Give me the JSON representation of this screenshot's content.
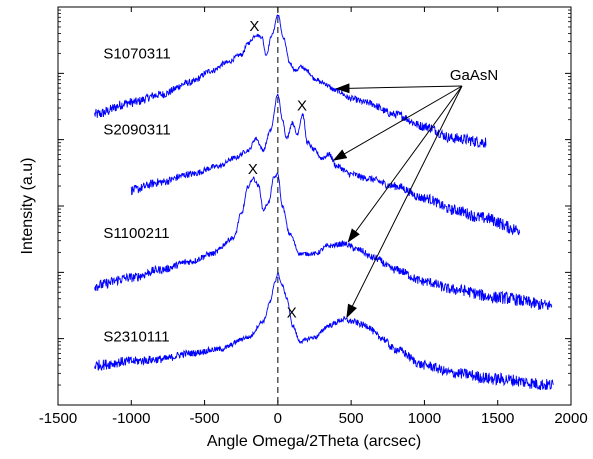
{
  "chart_data": {
    "type": "line",
    "xlabel": "Angle Omega/2Theta (arcsec)",
    "ylabel": "Intensity (a.u)",
    "xlim": [
      -1500,
      2000
    ],
    "ylim": [
      0,
      100
    ],
    "x_ticks": [
      -1500,
      -1000,
      -500,
      0,
      500,
      1000,
      1500,
      2000
    ],
    "y_tick_labels_shown": false,
    "line_color": "#0000ff",
    "reference_line": {
      "x": 0,
      "style": "dashed"
    },
    "series": [
      {
        "name": "S1070311",
        "x": [
          -1250,
          -1000,
          -800,
          -600,
          -450,
          -350,
          -250,
          -200,
          -150,
          -110,
          -80,
          -40,
          0,
          40,
          80,
          120,
          160,
          200,
          250,
          300,
          400,
          500,
          600,
          800,
          1000,
          1200,
          1420
        ],
        "y": [
          73,
          76,
          78,
          81,
          84,
          86,
          88,
          91,
          93,
          92.5,
          88,
          93,
          98,
          92,
          86,
          84,
          85,
          84,
          82,
          81,
          79,
          77,
          76,
          73,
          70,
          67,
          66
        ]
      },
      {
        "name": "S2090311",
        "x": [
          -1000,
          -800,
          -600,
          -400,
          -300,
          -200,
          -150,
          -100,
          -50,
          0,
          30,
          60,
          100,
          130,
          170,
          200,
          250,
          300,
          350,
          400,
          500,
          600,
          800,
          1000,
          1200,
          1400,
          1650
        ],
        "y": [
          54,
          56,
          58,
          60,
          62,
          64,
          67,
          64,
          69,
          78,
          72,
          67,
          71,
          68,
          73,
          66,
          64,
          62,
          63,
          60,
          58,
          57,
          55,
          52,
          49,
          47,
          44
        ]
      },
      {
        "name": "S1100211",
        "x": [
          -1250,
          -1000,
          -800,
          -600,
          -450,
          -300,
          -250,
          -200,
          -170,
          -130,
          -100,
          -60,
          -30,
          0,
          30,
          80,
          150,
          250,
          350,
          450,
          550,
          650,
          800,
          1000,
          1200,
          1500,
          1870
        ],
        "y": [
          30,
          32,
          34,
          36,
          38,
          42,
          48,
          55,
          57,
          55,
          49,
          51,
          57,
          58,
          50,
          43,
          38,
          38,
          40,
          40.5,
          39,
          37,
          34,
          31,
          29,
          27,
          25
        ]
      },
      {
        "name": "S2310111",
        "x": [
          -1250,
          -1000,
          -800,
          -600,
          -400,
          -200,
          -100,
          -50,
          -20,
          0,
          30,
          60,
          100,
          150,
          250,
          350,
          450,
          500,
          600,
          700,
          800,
          1000,
          1200,
          1500,
          1880
        ],
        "y": [
          10,
          11,
          11.5,
          13,
          14,
          17,
          21,
          26,
          31,
          33,
          30,
          27,
          20,
          16,
          17,
          20,
          21.5,
          21,
          20,
          17,
          14,
          10,
          8,
          6.5,
          5
        ]
      }
    ],
    "annotations": {
      "peak_marker": "X",
      "material_label": "GaAsN",
      "markers": [
        {
          "series": "S1070311",
          "x": -160,
          "y": 93
        },
        {
          "series": "S2090311",
          "x": 165,
          "y": 73
        },
        {
          "series": "S1100211",
          "x": -170,
          "y": 57
        },
        {
          "series": "S2310111",
          "x": 95,
          "y": 21
        }
      ],
      "arrow_targets": [
        {
          "series": "S1070311",
          "x": 400,
          "y": 79
        },
        {
          "series": "S2090311",
          "x": 380,
          "y": 61
        },
        {
          "series": "S1100211",
          "x": 480,
          "y": 40.5
        },
        {
          "series": "S2310111",
          "x": 470,
          "y": 21.5
        }
      ]
    }
  }
}
